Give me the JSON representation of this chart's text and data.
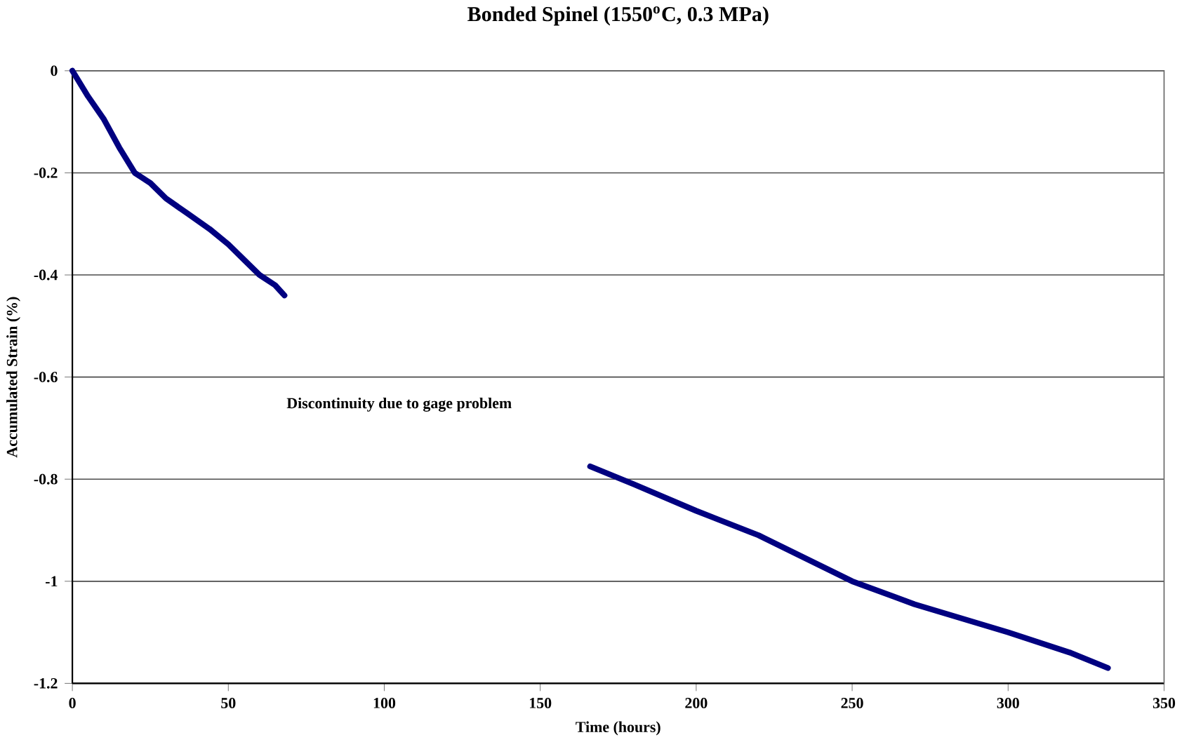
{
  "chart_data": {
    "type": "line",
    "title": "Bonded Spinel (1550$^{o}$C, 0.3 MPa)",
    "xlabel": "Time (hours)",
    "ylabel": "Accumulated Strain (%)",
    "annotations": [
      "Discontinuity due to gage  problem"
    ],
    "series": [
      {
        "color": "#000080",
        "x": [
          0,
          2,
          5,
          10,
          15,
          20,
          25,
          30,
          37,
          44,
          50,
          55,
          60,
          65,
          68,
          166,
          180,
          200,
          220,
          250,
          270,
          300,
          320,
          332
        ],
        "values": [
          0,
          -0.02,
          -0.05,
          -0.094,
          -0.15,
          -0.2,
          -0.22,
          -0.25,
          -0.28,
          -0.31,
          -0.34,
          -0.37,
          -0.4,
          -0.42,
          -0.44,
          -0.775,
          -0.81,
          -0.862,
          -0.91,
          -1.0,
          -1.045,
          -1.1,
          -1.14,
          -1.17
        ]
      }
    ],
    "xlim": [
      0,
      350
    ],
    "ylim": [
      -1.2,
      0
    ],
    "xticks": [
      0,
      50,
      100,
      150,
      200,
      250,
      300,
      350
    ],
    "yticks": [
      -1.2,
      -1,
      -0.8,
      -0.6,
      -0.4,
      -0.2,
      0
    ],
    "grid": "y",
    "marker": "none",
    "line_style": "solid"
  }
}
